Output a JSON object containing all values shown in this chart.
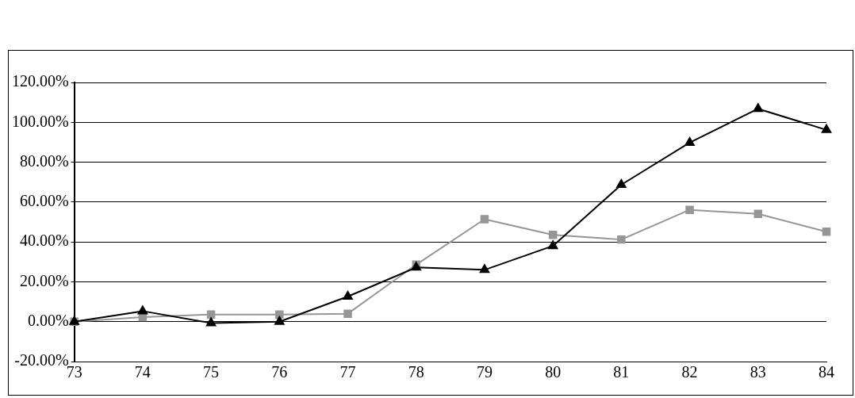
{
  "chart_data": {
    "type": "line",
    "categories": [
      "73",
      "74",
      "75",
      "76",
      "77",
      "78",
      "79",
      "80",
      "81",
      "82",
      "83",
      "84"
    ],
    "series": [
      {
        "color": "#969696",
        "marker": "square",
        "values": [
          0,
          2.3,
          3.6,
          3.6,
          4,
          28.6,
          51.4,
          43.5,
          41.2,
          56.1,
          54.1,
          45.1
        ]
      },
      {
        "color": "#000000",
        "marker": "triangle",
        "values": [
          0,
          5.3,
          -0.7,
          0,
          12.6,
          27.2,
          26,
          38,
          68.7,
          89.8,
          106.8,
          96.2
        ]
      }
    ],
    "ylim": [
      -20,
      120
    ],
    "yticks": [
      {
        "value": -20,
        "label": "-20.00%"
      },
      {
        "value": 0,
        "label": "0.00%"
      },
      {
        "value": 20,
        "label": "20.00%"
      },
      {
        "value": 40,
        "label": "40.00%"
      },
      {
        "value": 60,
        "label": "60.00%"
      },
      {
        "value": 80,
        "label": "80.00%"
      },
      {
        "value": 100,
        "label": "100.00%"
      },
      {
        "value": 120,
        "label": "120.00%"
      }
    ],
    "grid": "y",
    "legend": false,
    "line_style": "solid"
  }
}
